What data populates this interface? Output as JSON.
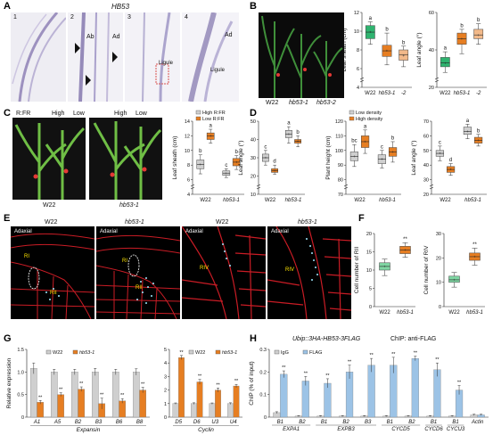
{
  "panelA": {
    "label": "A",
    "title": "HB53",
    "frames": [
      {
        "num": "1",
        "tags": []
      },
      {
        "num": "2",
        "tags": [
          "Ab",
          "Ad"
        ]
      },
      {
        "num": "3",
        "tags": [
          "Ligule"
        ]
      },
      {
        "num": "4",
        "tags": [
          "Ad",
          "Ligule"
        ]
      }
    ]
  },
  "panelB": {
    "label": "B",
    "photo_labels": [
      "W22",
      "hb53-1",
      "hb53-2"
    ]
  },
  "panelC": {
    "label": "C",
    "rfr_label": "R:FR",
    "high_label": "High",
    "low_label": "Low",
    "photo_labels": [
      "W22",
      "hb53-1"
    ]
  },
  "panelD": {
    "label": "D"
  },
  "panelE": {
    "label": "E",
    "frames": [
      {
        "title": "W22",
        "adaxial": "Adaxial",
        "zone": "RI",
        "zone2": "RII"
      },
      {
        "title": "hb53-1",
        "adaxial": "Adaxial",
        "zone": "RI",
        "zone2": "RII"
      },
      {
        "title": "W22",
        "adaxial": "Adaxial",
        "zone": "RIV"
      },
      {
        "title": "hb53-1",
        "adaxial": "Adaxial",
        "zone": "RIV"
      }
    ]
  },
  "panelF": {
    "label": "F"
  },
  "panelG": {
    "label": "G"
  },
  "panelH": {
    "label": "H",
    "title_construct": "Ubip::3HA-HB53-3FLAG",
    "title_chip": "ChIP: anti-FLAG"
  },
  "colors": {
    "w22": "#2fb36f",
    "mut": "#e67e22",
    "mut_light": "#f2b98a",
    "grey": "#cfcfcf",
    "blue": "#9cc3e6",
    "green_box": "#7fd6a3"
  },
  "chart_data": [
    {
      "id": "B1",
      "type": "box",
      "ylabel": "Leaf sheath (cm)",
      "ylim": [
        4,
        12
      ],
      "yticks": [
        4,
        6,
        8,
        10,
        12
      ],
      "ybreak": true,
      "categories": [
        "W22",
        "hb53-1",
        "-2"
      ],
      "category_styles": [
        "normal",
        "italic",
        "italic"
      ],
      "boxes": [
        {
          "q1": 9.2,
          "med": 9.9,
          "q3": 10.6,
          "min": 8.6,
          "max": 11.0,
          "mean": 9.9,
          "letter": "a",
          "color": "w22"
        },
        {
          "q1": 7.3,
          "med": 7.9,
          "q3": 8.5,
          "min": 6.4,
          "max": 9.8,
          "mean": 7.9,
          "letter": "b",
          "color": "mut"
        },
        {
          "q1": 6.9,
          "med": 7.5,
          "q3": 8.0,
          "min": 6.2,
          "max": 8.4,
          "mean": 7.4,
          "letter": "b",
          "color": "mut_light"
        }
      ]
    },
    {
      "id": "B2",
      "type": "box",
      "ylabel": "Leaf angle (°)",
      "ylim": [
        20,
        60
      ],
      "yticks": [
        20,
        40,
        60
      ],
      "ybreak": true,
      "categories": [
        "W22",
        "hb53-1",
        "-2"
      ],
      "category_styles": [
        "normal",
        "italic",
        "italic"
      ],
      "boxes": [
        {
          "q1": 31,
          "med": 33,
          "q3": 36,
          "min": 28,
          "max": 39,
          "mean": 33,
          "letter": "a",
          "color": "w22"
        },
        {
          "q1": 43,
          "med": 46,
          "q3": 49,
          "min": 38,
          "max": 51,
          "mean": 46,
          "letter": "b",
          "color": "mut"
        },
        {
          "q1": 46,
          "med": 48,
          "q3": 51,
          "min": 43,
          "max": 54,
          "mean": 48,
          "letter": "b",
          "color": "mut_light"
        }
      ]
    },
    {
      "id": "C1",
      "type": "box_grouped",
      "ylabel": "Leaf sheath (cm)",
      "ylim": [
        4,
        14
      ],
      "yticks": [
        4,
        6,
        8,
        10,
        12,
        14
      ],
      "ybreak": true,
      "groups": [
        "W22",
        "hb53-1"
      ],
      "group_styles": [
        "normal",
        "italic"
      ],
      "legend": [
        "High R:FR",
        "Low R:FR"
      ],
      "legend_colors": [
        "grey",
        "mut"
      ],
      "boxes": [
        {
          "group": 0,
          "q1": 7.5,
          "med": 8.1,
          "q3": 8.7,
          "min": 6.8,
          "max": 9.4,
          "mean": 8.1,
          "letter": "b",
          "color": "grey"
        },
        {
          "group": 0,
          "q1": 11.5,
          "med": 12.0,
          "q3": 12.4,
          "min": 11.0,
          "max": 12.9,
          "mean": 12.0,
          "letter": "a",
          "color": "mut"
        },
        {
          "group": 1,
          "q1": 6.6,
          "med": 6.9,
          "q3": 7.2,
          "min": 6.3,
          "max": 7.5,
          "mean": 6.9,
          "letter": "c",
          "color": "grey"
        },
        {
          "group": 1,
          "q1": 7.9,
          "med": 8.4,
          "q3": 8.9,
          "min": 7.4,
          "max": 9.3,
          "mean": 8.4,
          "letter": "b",
          "color": "mut"
        }
      ]
    },
    {
      "id": "C2",
      "type": "box_grouped",
      "ylabel": "Leaf angle (°)",
      "ylim": [
        10,
        50
      ],
      "yticks": [
        10,
        20,
        30,
        40,
        50
      ],
      "ybreak": true,
      "groups": [
        "W22",
        "hb53-1"
      ],
      "group_styles": [
        "normal",
        "italic"
      ],
      "boxes": [
        {
          "group": 0,
          "q1": 28,
          "med": 30,
          "q3": 32,
          "min": 26,
          "max": 34,
          "mean": 30,
          "letter": "c",
          "color": "grey"
        },
        {
          "group": 0,
          "q1": 22,
          "med": 23,
          "q3": 24,
          "min": 21,
          "max": 26,
          "mean": 23,
          "letter": "d",
          "color": "mut"
        },
        {
          "group": 1,
          "q1": 41,
          "med": 43,
          "q3": 45,
          "min": 38,
          "max": 47,
          "mean": 43,
          "letter": "a",
          "color": "grey"
        },
        {
          "group": 1,
          "q1": 38,
          "med": 39,
          "q3": 40,
          "min": 36,
          "max": 42,
          "mean": 39,
          "letter": "b",
          "color": "mut"
        }
      ]
    },
    {
      "id": "D1",
      "type": "box_grouped",
      "ylabel": "Plant height (cm)",
      "ylim": [
        70,
        120
      ],
      "yticks": [
        70,
        80,
        90,
        100,
        110,
        120
      ],
      "ybreak": true,
      "groups": [
        "W22",
        "hb53-1"
      ],
      "group_styles": [
        "normal",
        "italic"
      ],
      "legend": [
        "Low density",
        "High density"
      ],
      "legend_colors": [
        "grey",
        "mut"
      ],
      "boxes": [
        {
          "group": 0,
          "q1": 93,
          "med": 96,
          "q3": 99,
          "min": 89,
          "max": 104,
          "mean": 96,
          "letter": "bc",
          "color": "grey"
        },
        {
          "group": 0,
          "q1": 102,
          "med": 106,
          "q3": 110,
          "min": 98,
          "max": 114,
          "mean": 106,
          "letter": "a",
          "color": "mut"
        },
        {
          "group": 1,
          "q1": 91,
          "med": 94,
          "q3": 97,
          "min": 88,
          "max": 100,
          "mean": 94,
          "letter": "c",
          "color": "grey"
        },
        {
          "group": 1,
          "q1": 96,
          "med": 99,
          "q3": 102,
          "min": 92,
          "max": 106,
          "mean": 99,
          "letter": "b",
          "color": "mut"
        }
      ]
    },
    {
      "id": "D2",
      "type": "box_grouped",
      "ylabel": "Leaf angle (°)",
      "ylim": [
        20,
        70
      ],
      "yticks": [
        20,
        30,
        40,
        50,
        60,
        70
      ],
      "ybreak": true,
      "groups": [
        "W22",
        "hb53-1"
      ],
      "group_styles": [
        "normal",
        "italic"
      ],
      "boxes": [
        {
          "group": 0,
          "q1": 46,
          "med": 48,
          "q3": 50,
          "min": 43,
          "max": 53,
          "mean": 48,
          "letter": "c",
          "color": "grey"
        },
        {
          "group": 0,
          "q1": 35,
          "med": 37,
          "q3": 39,
          "min": 33,
          "max": 41,
          "mean": 37,
          "letter": "d",
          "color": "mut"
        },
        {
          "group": 1,
          "q1": 61,
          "med": 63,
          "q3": 66,
          "min": 58,
          "max": 68,
          "mean": 63,
          "letter": "a",
          "color": "grey"
        },
        {
          "group": 1,
          "q1": 55,
          "med": 57,
          "q3": 59,
          "min": 53,
          "max": 61,
          "mean": 57,
          "letter": "b",
          "color": "mut"
        }
      ]
    },
    {
      "id": "F1",
      "type": "box",
      "ylabel": "Cell number of RII",
      "ylim": [
        0,
        20
      ],
      "yticks": [
        0,
        5,
        10,
        15,
        20
      ],
      "ybreak": false,
      "categories": [
        "W22",
        "hb53-1"
      ],
      "category_styles": [
        "normal",
        "italic"
      ],
      "boxes": [
        {
          "q1": 10.0,
          "med": 11.0,
          "q3": 12.0,
          "min": 8.5,
          "max": 13.0,
          "mean": 11.0,
          "letter": "",
          "color": "green_box"
        },
        {
          "q1": 14.5,
          "med": 15.5,
          "q3": 16.5,
          "min": 13.5,
          "max": 17.5,
          "mean": 15.5,
          "letter": "**",
          "color": "mut"
        }
      ]
    },
    {
      "id": "F2",
      "type": "box",
      "ylabel": "Cell number of RIV",
      "ylim": [
        0,
        30
      ],
      "yticks": [
        0,
        10,
        20,
        30
      ],
      "ybreak": false,
      "categories": [
        "W22",
        "hb53-1"
      ],
      "category_styles": [
        "normal",
        "italic"
      ],
      "boxes": [
        {
          "q1": 10,
          "med": 11,
          "q3": 12.5,
          "min": 8,
          "max": 14,
          "mean": 11,
          "letter": "",
          "color": "green_box"
        },
        {
          "q1": 19,
          "med": 20.5,
          "q3": 22,
          "min": 17,
          "max": 24,
          "mean": 20.5,
          "letter": "**",
          "color": "mut"
        }
      ]
    },
    {
      "id": "G1",
      "type": "bar",
      "ylabel": "Relative expression",
      "ylim": [
        0,
        1.5
      ],
      "yticks": [
        0,
        0.5,
        1.0,
        1.5
      ],
      "ytick_labels": [
        "0",
        "0.5",
        "1.0",
        "1.5"
      ],
      "categories": [
        "A1",
        "A5",
        "B2",
        "B3",
        "B6",
        "B8"
      ],
      "xgroup_label": "Expansin",
      "legend": [
        "W22",
        "hb53-1"
      ],
      "legend_colors": [
        "grey",
        "mut"
      ],
      "series": [
        {
          "name": "W22",
          "values": [
            1.08,
            1.0,
            1.0,
            1.0,
            1.0,
            1.0
          ],
          "err": [
            0.12,
            0.06,
            0.06,
            0.08,
            0.06,
            0.07
          ],
          "color": "grey"
        },
        {
          "name": "hb53-1",
          "values": [
            0.33,
            0.5,
            0.62,
            0.3,
            0.36,
            0.6
          ],
          "err": [
            0.04,
            0.04,
            0.05,
            0.12,
            0.05,
            0.06
          ],
          "color": "mut"
        }
      ],
      "stars": [
        "**",
        "**",
        "**",
        "**",
        "**",
        "**"
      ]
    },
    {
      "id": "G2",
      "type": "bar",
      "ylabel": "",
      "ylim": [
        0,
        5
      ],
      "yticks": [
        0,
        1,
        2,
        3,
        4,
        5
      ],
      "ytick_labels": [
        "0",
        "1",
        "2",
        "3",
        "4",
        "5"
      ],
      "categories": [
        "D5",
        "D6",
        "U3",
        "U4"
      ],
      "xgroup_label": "Cyclin",
      "legend": [
        "W22",
        "hb53-1"
      ],
      "legend_colors": [
        "grey",
        "mut"
      ],
      "series": [
        {
          "name": "W22",
          "values": [
            1.0,
            1.0,
            1.0,
            1.0
          ],
          "err": [
            0.05,
            0.06,
            0.05,
            0.06
          ],
          "color": "grey"
        },
        {
          "name": "hb53-1",
          "values": [
            4.4,
            2.6,
            2.0,
            2.3
          ],
          "err": [
            0.15,
            0.18,
            0.15,
            0.12
          ],
          "color": "mut"
        }
      ],
      "stars": [
        "**",
        "**",
        "**",
        "**"
      ]
    },
    {
      "id": "H1",
      "type": "bar",
      "ylabel": "ChIP (% of input)",
      "ylim": [
        0,
        0.3
      ],
      "yticks": [
        0,
        0.1,
        0.2,
        0.3
      ],
      "ytick_labels": [
        "0",
        "0.1",
        "0.2",
        "0.3"
      ],
      "categories": [
        "B1",
        "B2",
        "B1",
        "B2",
        "B3",
        "B1",
        "B2",
        "B1",
        "B1",
        ""
      ],
      "group_labels": [
        {
          "label": "EXPA1",
          "from": 0,
          "to": 1
        },
        {
          "label": "EXPB3",
          "from": 2,
          "to": 4
        },
        {
          "label": "CYCD5",
          "from": 5,
          "to": 6
        },
        {
          "label": "CYCD6",
          "from": 7,
          "to": 7
        },
        {
          "label": "CYCU3",
          "from": 8,
          "to": 8
        },
        {
          "label": "Actin",
          "from": 9,
          "to": 9
        }
      ],
      "legend": [
        "IgG",
        "FLAG"
      ],
      "legend_colors": [
        "grey",
        "blue"
      ],
      "series": [
        {
          "name": "IgG",
          "values": [
            0.02,
            0.005,
            0.005,
            0.005,
            0.005,
            0.005,
            0.005,
            0.005,
            0.005,
            0.01
          ],
          "err": [
            0.004,
            0.002,
            0.002,
            0.002,
            0.002,
            0.002,
            0.002,
            0.002,
            0.002,
            0.003
          ],
          "color": "grey"
        },
        {
          "name": "FLAG",
          "values": [
            0.19,
            0.16,
            0.15,
            0.2,
            0.23,
            0.23,
            0.26,
            0.21,
            0.12,
            0.01
          ],
          "err": [
            0.015,
            0.02,
            0.02,
            0.03,
            0.03,
            0.035,
            0.01,
            0.03,
            0.02,
            0.003
          ],
          "color": "blue"
        }
      ],
      "stars": [
        "**",
        "**",
        "**",
        "**",
        "**",
        "**",
        "**",
        "**",
        "**",
        ""
      ]
    }
  ]
}
